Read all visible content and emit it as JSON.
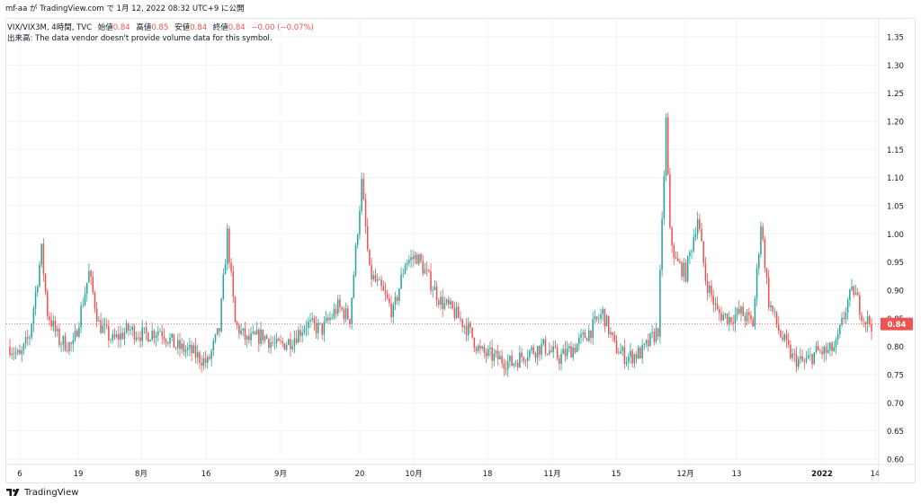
{
  "header": {
    "text": "mf-aa が TradingView.com で 1月 12, 2022 08:32 UTC+9 に公開"
  },
  "legend": {
    "symbol": "VIX/VIX3M, 4時間, TVC",
    "open_label": "始値",
    "open": "0.84",
    "high_label": "高値",
    "high": "0.85",
    "low_label": "安値",
    "low": "0.84",
    "close_label": "終値",
    "close": "0.84",
    "change": "−0.00 (−0.07%)",
    "volume_note": "出来高: The data vendor doesn't provide volume data for this symbol."
  },
  "footer": {
    "brand": "TradingView"
  },
  "colors": {
    "up": "#26a69a",
    "down": "#ef5350",
    "grid": "#f0f3fa",
    "axis_text": "#131722",
    "price_tag": "#ef5350"
  },
  "chart_data": {
    "type": "candlestick",
    "x_ticks": [
      "6",
      "19",
      "8月",
      "16",
      "9月",
      "20",
      "10月",
      "18",
      "11月",
      "15",
      "12月",
      "13",
      "2022",
      "14"
    ],
    "y_ticks": [
      1.35,
      1.3,
      1.25,
      1.2,
      1.15,
      1.1,
      1.05,
      1.0,
      0.95,
      0.9,
      0.85,
      0.8,
      0.75,
      0.7,
      0.65,
      0.6
    ],
    "ylim": [
      0.6,
      1.35
    ],
    "last_price": "0.84",
    "grid": true,
    "anchors": [
      [
        0,
        0.8
      ],
      [
        5,
        0.78
      ],
      [
        10,
        0.82
      ],
      [
        16,
        0.97
      ],
      [
        19,
        0.86
      ],
      [
        25,
        0.81
      ],
      [
        32,
        0.8
      ],
      [
        40,
        0.93
      ],
      [
        45,
        0.84
      ],
      [
        52,
        0.81
      ],
      [
        60,
        0.83
      ],
      [
        68,
        0.82
      ],
      [
        76,
        0.83
      ],
      [
        84,
        0.8
      ],
      [
        92,
        0.79
      ],
      [
        100,
        0.77
      ],
      [
        106,
        0.83
      ],
      [
        110,
        1.0
      ],
      [
        114,
        0.84
      ],
      [
        120,
        0.81
      ],
      [
        128,
        0.82
      ],
      [
        135,
        0.8
      ],
      [
        142,
        0.81
      ],
      [
        150,
        0.84
      ],
      [
        158,
        0.83
      ],
      [
        166,
        0.87
      ],
      [
        172,
        0.85
      ],
      [
        178,
        1.09
      ],
      [
        182,
        0.93
      ],
      [
        188,
        0.9
      ],
      [
        194,
        0.86
      ],
      [
        200,
        0.95
      ],
      [
        206,
        0.96
      ],
      [
        212,
        0.92
      ],
      [
        218,
        0.88
      ],
      [
        225,
        0.86
      ],
      [
        232,
        0.83
      ],
      [
        238,
        0.79
      ],
      [
        246,
        0.78
      ],
      [
        254,
        0.77
      ],
      [
        262,
        0.79
      ],
      [
        270,
        0.8
      ],
      [
        278,
        0.78
      ],
      [
        286,
        0.8
      ],
      [
        294,
        0.83
      ],
      [
        300,
        0.86
      ],
      [
        306,
        0.8
      ],
      [
        312,
        0.78
      ],
      [
        320,
        0.79
      ],
      [
        328,
        0.83
      ],
      [
        332,
        1.2
      ],
      [
        334,
        1.0
      ],
      [
        337,
        0.95
      ],
      [
        342,
        0.93
      ],
      [
        348,
        1.03
      ],
      [
        352,
        0.92
      ],
      [
        358,
        0.86
      ],
      [
        364,
        0.85
      ],
      [
        370,
        0.86
      ],
      [
        376,
        0.84
      ],
      [
        380,
        1.02
      ],
      [
        384,
        0.88
      ],
      [
        390,
        0.82
      ],
      [
        396,
        0.78
      ],
      [
        402,
        0.77
      ],
      [
        408,
        0.79
      ],
      [
        414,
        0.79
      ],
      [
        418,
        0.8
      ],
      [
        424,
        0.88
      ],
      [
        427,
        0.9
      ],
      [
        432,
        0.85
      ],
      [
        436,
        0.84
      ]
    ],
    "seed": 7,
    "bar_count": 437
  }
}
